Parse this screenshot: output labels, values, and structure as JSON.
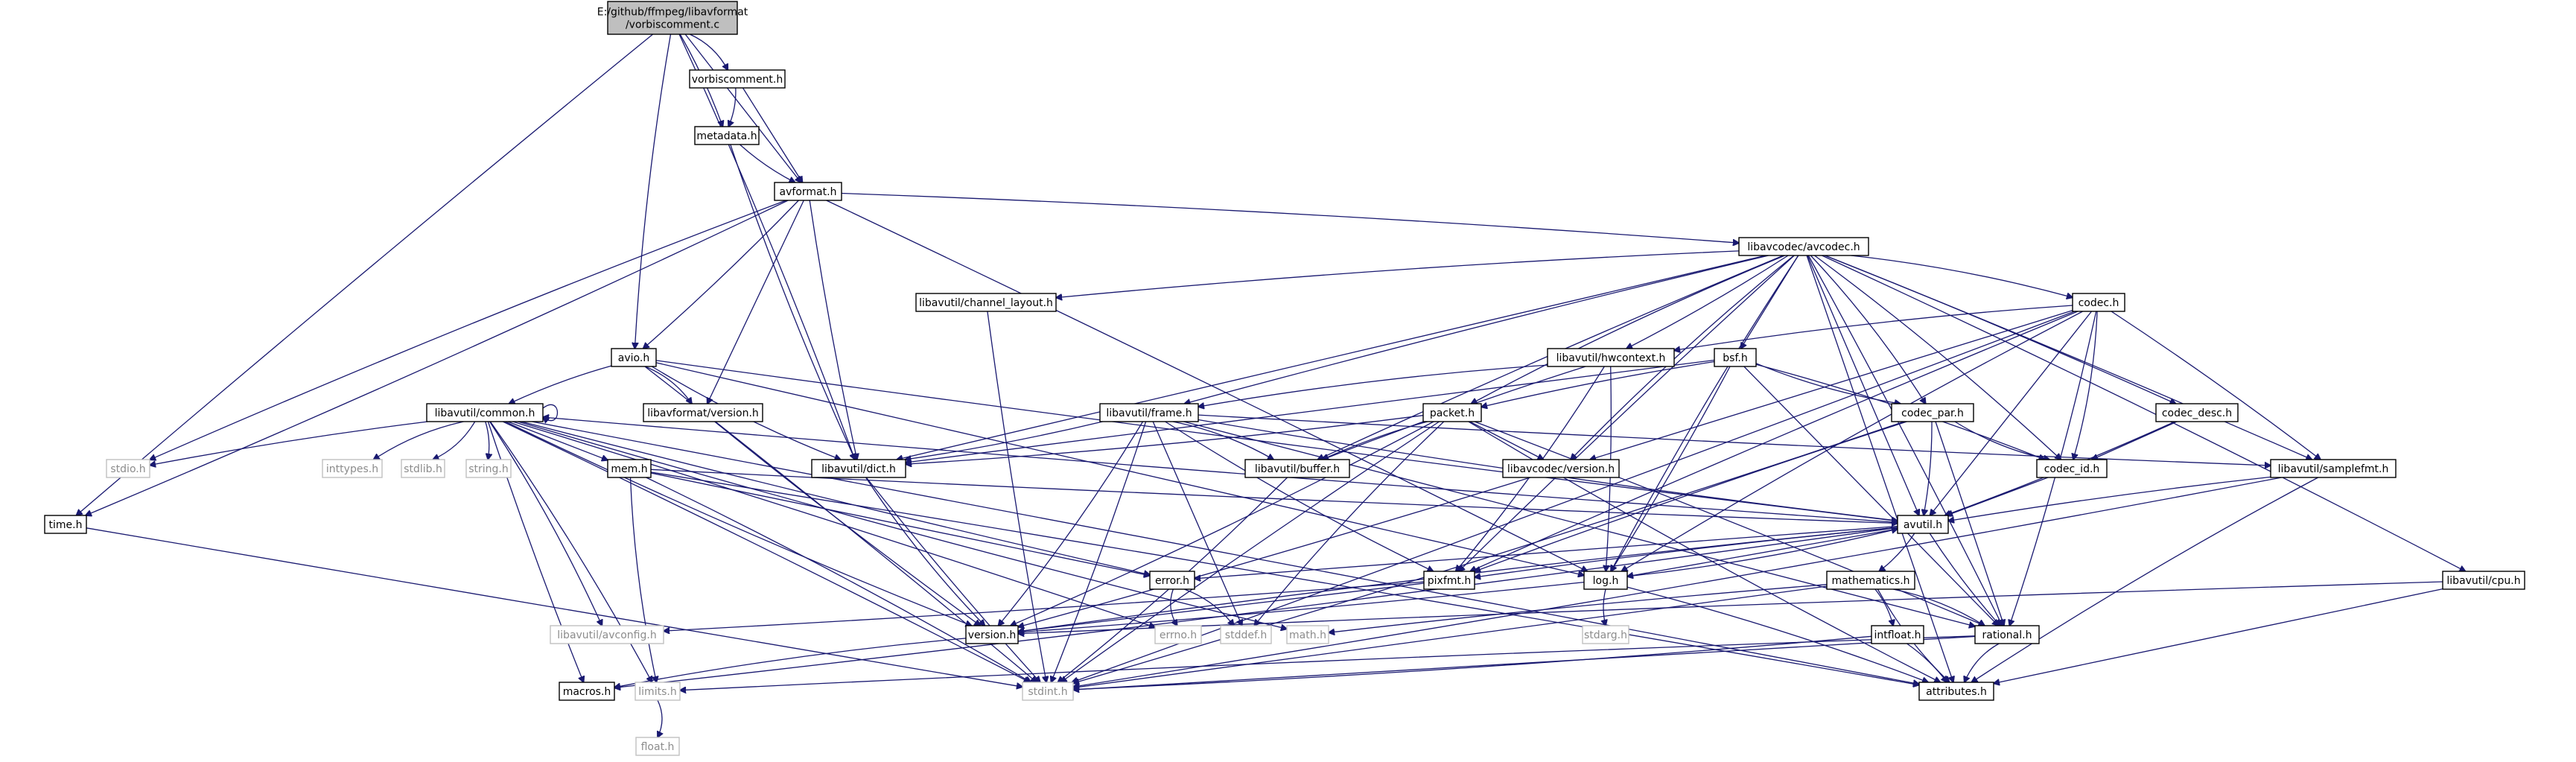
{
  "diagram": {
    "type": "include-dependency-graph",
    "colors": {
      "edge": "#191970",
      "root_fill": "#bfbfbf",
      "node_border": "#000000",
      "system_border": "#c0c0c0",
      "system_text": "#8c8c8c"
    },
    "nodes": [
      {
        "id": "root",
        "lines": [
          "E:/github/ffmpeg/libavformat",
          "/vorbiscomment.c"
        ],
        "kind": "root"
      },
      {
        "id": "vorbiscomment_h",
        "lines": [
          "vorbiscomment.h"
        ],
        "kind": "local"
      },
      {
        "id": "metadata_h",
        "lines": [
          "metadata.h"
        ],
        "kind": "local"
      },
      {
        "id": "avformat_h",
        "lines": [
          "avformat.h"
        ],
        "kind": "local"
      },
      {
        "id": "time_h",
        "lines": [
          "time.h"
        ],
        "kind": "local"
      },
      {
        "id": "avio_h",
        "lines": [
          "avio.h"
        ],
        "kind": "local"
      },
      {
        "id": "avcodec_h",
        "lines": [
          "libavcodec/avcodec.h"
        ],
        "kind": "local"
      },
      {
        "id": "channel_layout_h",
        "lines": [
          "libavutil/channel_layout.h"
        ],
        "kind": "local"
      },
      {
        "id": "codec_h",
        "lines": [
          "codec.h"
        ],
        "kind": "local"
      },
      {
        "id": "hwcontext_h",
        "lines": [
          "libavutil/hwcontext.h"
        ],
        "kind": "local"
      },
      {
        "id": "bsf_h",
        "lines": [
          "bsf.h"
        ],
        "kind": "local"
      },
      {
        "id": "common_h",
        "lines": [
          "libavutil/common.h"
        ],
        "kind": "local"
      },
      {
        "id": "lavf_version_h",
        "lines": [
          "libavformat/version.h"
        ],
        "kind": "local"
      },
      {
        "id": "frame_h",
        "lines": [
          "libavutil/frame.h"
        ],
        "kind": "local"
      },
      {
        "id": "packet_h",
        "lines": [
          "packet.h"
        ],
        "kind": "local"
      },
      {
        "id": "codec_par_h",
        "lines": [
          "codec_par.h"
        ],
        "kind": "local"
      },
      {
        "id": "codec_desc_h",
        "lines": [
          "codec_desc.h"
        ],
        "kind": "local"
      },
      {
        "id": "stdio_h",
        "lines": [
          "stdio.h"
        ],
        "kind": "system"
      },
      {
        "id": "inttypes_h",
        "lines": [
          "inttypes.h"
        ],
        "kind": "system"
      },
      {
        "id": "stdlib_h",
        "lines": [
          "stdlib.h"
        ],
        "kind": "system"
      },
      {
        "id": "string_h",
        "lines": [
          "string.h"
        ],
        "kind": "system"
      },
      {
        "id": "dict_h",
        "lines": [
          "libavutil/dict.h"
        ],
        "kind": "local"
      },
      {
        "id": "buffer_h",
        "lines": [
          "libavutil/buffer.h"
        ],
        "kind": "local"
      },
      {
        "id": "lavc_version_h",
        "lines": [
          "libavcodec/version.h"
        ],
        "kind": "local"
      },
      {
        "id": "codec_id_h",
        "lines": [
          "codec_id.h"
        ],
        "kind": "local"
      },
      {
        "id": "samplefmt_h",
        "lines": [
          "libavutil/samplefmt.h"
        ],
        "kind": "local"
      },
      {
        "id": "mem_h",
        "lines": [
          "mem.h"
        ],
        "kind": "local"
      },
      {
        "id": "avutil_h",
        "lines": [
          "avutil.h"
        ],
        "kind": "local"
      },
      {
        "id": "error_h",
        "lines": [
          "error.h"
        ],
        "kind": "local"
      },
      {
        "id": "pixfmt_h",
        "lines": [
          "pixfmt.h"
        ],
        "kind": "local"
      },
      {
        "id": "log_h",
        "lines": [
          "log.h"
        ],
        "kind": "local"
      },
      {
        "id": "mathematics_h",
        "lines": [
          "mathematics.h"
        ],
        "kind": "local"
      },
      {
        "id": "cpu_h",
        "lines": [
          "libavutil/cpu.h"
        ],
        "kind": "local"
      },
      {
        "id": "avconfig_h",
        "lines": [
          "libavutil/avconfig.h"
        ],
        "kind": "system"
      },
      {
        "id": "version_h",
        "lines": [
          "version.h"
        ],
        "kind": "local"
      },
      {
        "id": "errno_h",
        "lines": [
          "errno.h"
        ],
        "kind": "system"
      },
      {
        "id": "stddef_h",
        "lines": [
          "stddef.h"
        ],
        "kind": "system"
      },
      {
        "id": "math_h",
        "lines": [
          "math.h"
        ],
        "kind": "system"
      },
      {
        "id": "stdarg_h",
        "lines": [
          "stdarg.h"
        ],
        "kind": "system"
      },
      {
        "id": "intfloat_h",
        "lines": [
          "intfloat.h"
        ],
        "kind": "local"
      },
      {
        "id": "rational_h",
        "lines": [
          "rational.h"
        ],
        "kind": "local"
      },
      {
        "id": "macros_h",
        "lines": [
          "macros.h"
        ],
        "kind": "local"
      },
      {
        "id": "limits_h",
        "lines": [
          "limits.h"
        ],
        "kind": "system"
      },
      {
        "id": "stdint_h",
        "lines": [
          "stdint.h"
        ],
        "kind": "system"
      },
      {
        "id": "attributes_h",
        "lines": [
          "attributes.h"
        ],
        "kind": "local"
      },
      {
        "id": "float_h",
        "lines": [
          "float.h"
        ],
        "kind": "system"
      }
    ],
    "edges": [
      [
        "root",
        "vorbiscomment_h"
      ],
      [
        "root",
        "metadata_h"
      ],
      [
        "root",
        "avformat_h"
      ],
      [
        "root",
        "time_h"
      ],
      [
        "root",
        "avio_h"
      ],
      [
        "root",
        "dict_h"
      ],
      [
        "vorbiscomment_h",
        "metadata_h"
      ],
      [
        "vorbiscomment_h",
        "avformat_h"
      ],
      [
        "metadata_h",
        "avformat_h"
      ],
      [
        "metadata_h",
        "dict_h"
      ],
      [
        "avformat_h",
        "avcodec_h"
      ],
      [
        "avformat_h",
        "avio_h"
      ],
      [
        "avformat_h",
        "lavf_version_h"
      ],
      [
        "avformat_h",
        "dict_h"
      ],
      [
        "avformat_h",
        "stdio_h"
      ],
      [
        "avformat_h",
        "time_h"
      ],
      [
        "avformat_h",
        "log_h"
      ],
      [
        "time_h",
        "stdint_h"
      ],
      [
        "avio_h",
        "common_h"
      ],
      [
        "avio_h",
        "dict_h"
      ],
      [
        "avio_h",
        "lavf_version_h"
      ],
      [
        "avio_h",
        "stdint_h"
      ],
      [
        "avio_h",
        "log_h"
      ],
      [
        "avio_h",
        "avutil_h"
      ],
      [
        "avcodec_h",
        "channel_layout_h"
      ],
      [
        "avcodec_h",
        "codec_h"
      ],
      [
        "avcodec_h",
        "hwcontext_h"
      ],
      [
        "avcodec_h",
        "bsf_h"
      ],
      [
        "avcodec_h",
        "frame_h"
      ],
      [
        "avcodec_h",
        "packet_h"
      ],
      [
        "avcodec_h",
        "codec_par_h"
      ],
      [
        "avcodec_h",
        "codec_desc_h"
      ],
      [
        "avcodec_h",
        "dict_h"
      ],
      [
        "avcodec_h",
        "buffer_h"
      ],
      [
        "avcodec_h",
        "lavc_version_h"
      ],
      [
        "avcodec_h",
        "codec_id_h"
      ],
      [
        "avcodec_h",
        "samplefmt_h"
      ],
      [
        "avcodec_h",
        "avutil_h"
      ],
      [
        "avcodec_h",
        "pixfmt_h"
      ],
      [
        "avcodec_h",
        "log_h"
      ],
      [
        "avcodec_h",
        "cpu_h"
      ],
      [
        "avcodec_h",
        "rational_h"
      ],
      [
        "avcodec_h",
        "attributes_h"
      ],
      [
        "channel_layout_h",
        "stdint_h"
      ],
      [
        "codec_h",
        "hwcontext_h"
      ],
      [
        "codec_h",
        "codec_id_h"
      ],
      [
        "codec_h",
        "samplefmt_h"
      ],
      [
        "codec_h",
        "avutil_h"
      ],
      [
        "codec_h",
        "pixfmt_h"
      ],
      [
        "codec_h",
        "log_h"
      ],
      [
        "codec_h",
        "rational_h"
      ],
      [
        "codec_h",
        "stdint_h"
      ],
      [
        "codec_h",
        "lavc_version_h"
      ],
      [
        "hwcontext_h",
        "buffer_h"
      ],
      [
        "hwcontext_h",
        "frame_h"
      ],
      [
        "hwcontext_h",
        "pixfmt_h"
      ],
      [
        "hwcontext_h",
        "log_h"
      ],
      [
        "bsf_h",
        "dict_h"
      ],
      [
        "bsf_h",
        "packet_h"
      ],
      [
        "bsf_h",
        "codec_par_h"
      ],
      [
        "bsf_h",
        "codec_id_h"
      ],
      [
        "bsf_h",
        "log_h"
      ],
      [
        "bsf_h",
        "rational_h"
      ],
      [
        "common_h",
        "stdio_h"
      ],
      [
        "common_h",
        "inttypes_h"
      ],
      [
        "common_h",
        "stdlib_h"
      ],
      [
        "common_h",
        "string_h"
      ],
      [
        "common_h",
        "mem_h"
      ],
      [
        "common_h",
        "error_h"
      ],
      [
        "common_h",
        "math_h"
      ],
      [
        "common_h",
        "limits_h"
      ],
      [
        "common_h",
        "stdint_h"
      ],
      [
        "common_h",
        "attributes_h"
      ],
      [
        "common_h",
        "macros_h"
      ],
      [
        "common_h",
        "version_h"
      ],
      [
        "common_h",
        "avconfig_h"
      ],
      [
        "common_h",
        "errno_h"
      ],
      [
        "common_h",
        "common_h"
      ],
      [
        "lavf_version_h",
        "version_h"
      ],
      [
        "frame_h",
        "avutil_h"
      ],
      [
        "frame_h",
        "buffer_h"
      ],
      [
        "frame_h",
        "dict_h"
      ],
      [
        "frame_h",
        "rational_h"
      ],
      [
        "frame_h",
        "samplefmt_h"
      ],
      [
        "frame_h",
        "pixfmt_h"
      ],
      [
        "frame_h",
        "version_h"
      ],
      [
        "frame_h",
        "stdint_h"
      ],
      [
        "frame_h",
        "stddef_h"
      ],
      [
        "packet_h",
        "buffer_h"
      ],
      [
        "packet_h",
        "attributes_h"
      ],
      [
        "packet_h",
        "dict_h"
      ],
      [
        "packet_h",
        "rational_h"
      ],
      [
        "packet_h",
        "lavc_version_h"
      ],
      [
        "packet_h",
        "stdint_h"
      ],
      [
        "packet_h",
        "stddef_h"
      ],
      [
        "packet_h",
        "version_h"
      ],
      [
        "codec_par_h",
        "avutil_h"
      ],
      [
        "codec_par_h",
        "rational_h"
      ],
      [
        "codec_par_h",
        "pixfmt_h"
      ],
      [
        "codec_par_h",
        "codec_id_h"
      ],
      [
        "codec_par_h",
        "stdint_h"
      ],
      [
        "codec_desc_h",
        "avutil_h"
      ],
      [
        "codec_desc_h",
        "codec_id_h"
      ],
      [
        "dict_h",
        "stdint_h"
      ],
      [
        "dict_h",
        "version_h"
      ],
      [
        "buffer_h",
        "stdint_h"
      ],
      [
        "lavc_version_h",
        "version_h"
      ],
      [
        "codec_id_h",
        "avutil_h"
      ],
      [
        "samplefmt_h",
        "avutil_h"
      ],
      [
        "samplefmt_h",
        "attributes_h"
      ],
      [
        "samplefmt_h",
        "stdint_h"
      ],
      [
        "mem_h",
        "attributes_h"
      ],
      [
        "mem_h",
        "error_h"
      ],
      [
        "mem_h",
        "avutil_h"
      ],
      [
        "mem_h",
        "limits_h"
      ],
      [
        "mem_h",
        "stdint_h"
      ],
      [
        "avutil_h",
        "common_h"
      ],
      [
        "avutil_h",
        "error_h"
      ],
      [
        "avutil_h",
        "rational_h"
      ],
      [
        "avutil_h",
        "version_h"
      ],
      [
        "avutil_h",
        "macros_h"
      ],
      [
        "avutil_h",
        "mathematics_h"
      ],
      [
        "avutil_h",
        "log_h"
      ],
      [
        "avutil_h",
        "pixfmt_h"
      ],
      [
        "error_h",
        "errno_h"
      ],
      [
        "error_h",
        "stddef_h"
      ],
      [
        "pixfmt_h",
        "avconfig_h"
      ],
      [
        "pixfmt_h",
        "version_h"
      ],
      [
        "log_h",
        "stdarg_h"
      ],
      [
        "log_h",
        "avutil_h"
      ],
      [
        "log_h",
        "attributes_h"
      ],
      [
        "log_h",
        "version_h"
      ],
      [
        "mathematics_h",
        "stdint_h"
      ],
      [
        "mathematics_h",
        "math_h"
      ],
      [
        "mathematics_h",
        "attributes_h"
      ],
      [
        "mathematics_h",
        "rational_h"
      ],
      [
        "mathematics_h",
        "intfloat_h"
      ],
      [
        "cpu_h",
        "attributes_h"
      ],
      [
        "cpu_h",
        "version_h"
      ],
      [
        "version_h",
        "macros_h"
      ],
      [
        "intfloat_h",
        "stdint_h"
      ],
      [
        "intfloat_h",
        "attributes_h"
      ],
      [
        "rational_h",
        "stdint_h"
      ],
      [
        "rational_h",
        "limits_h"
      ],
      [
        "rational_h",
        "attributes_h"
      ],
      [
        "limits_h",
        "float_h"
      ]
    ]
  }
}
